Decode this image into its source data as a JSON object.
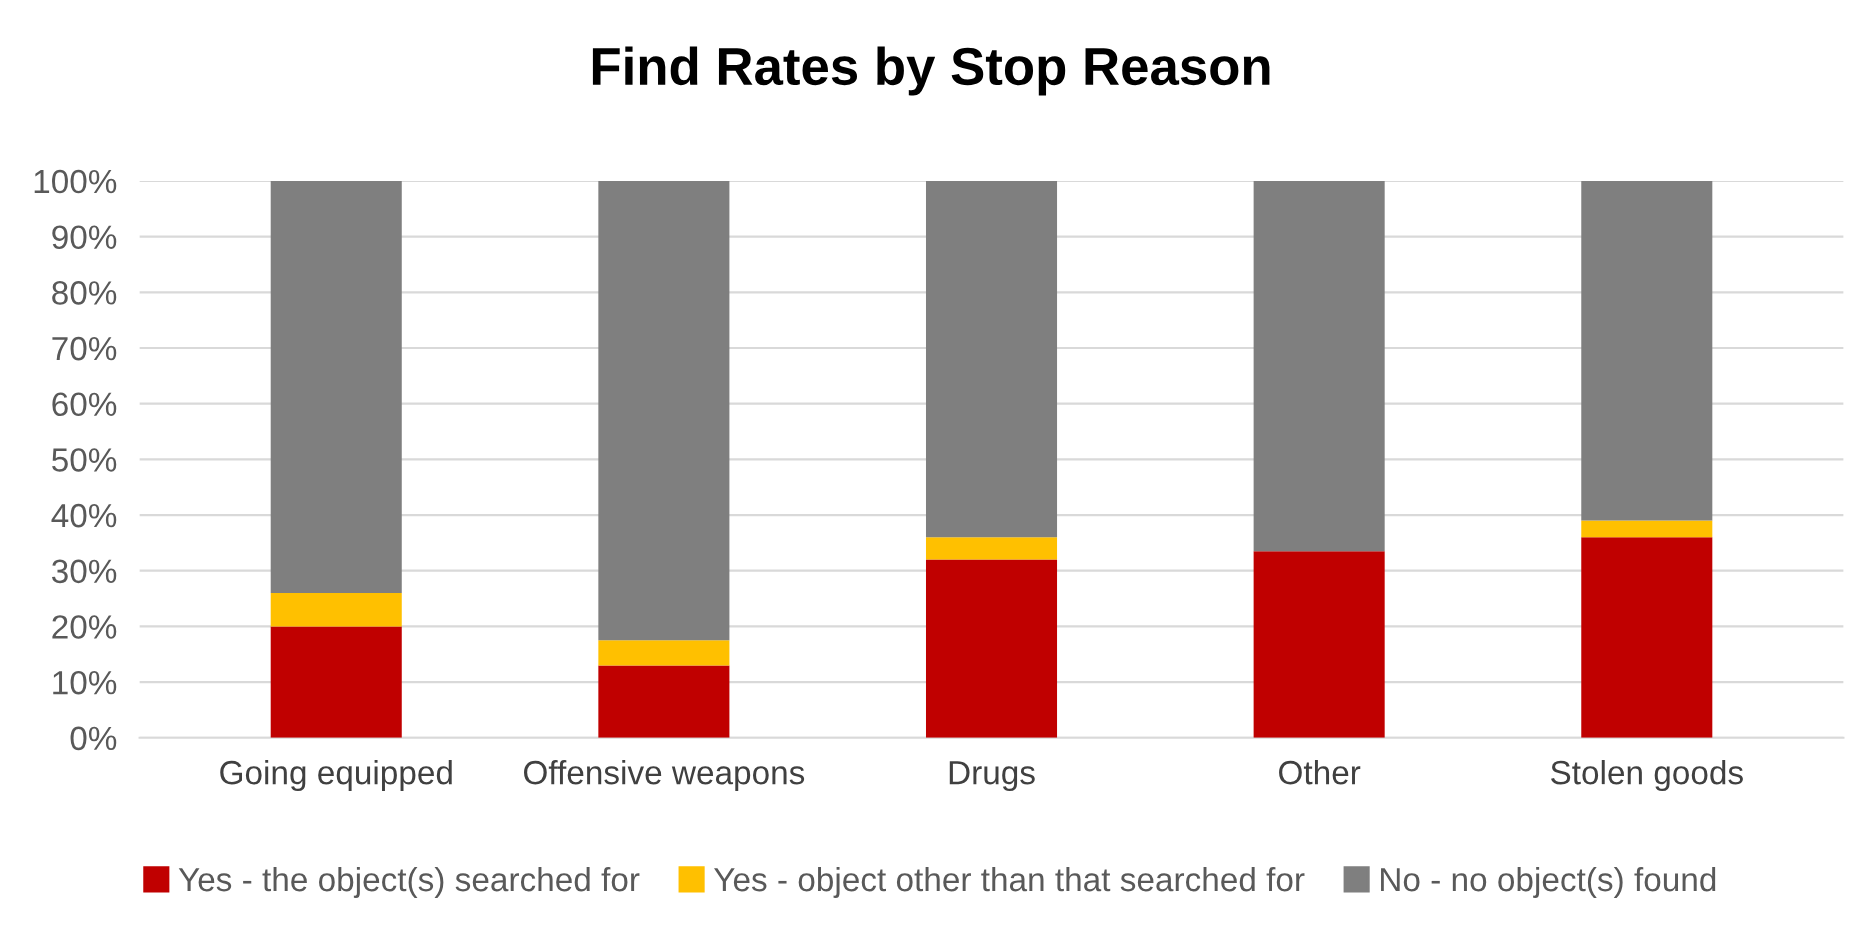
{
  "chart_data": {
    "type": "bar",
    "title": "Find Rates by Stop Reason",
    "stacked": true,
    "categories": [
      "Going equipped",
      "Offensive weapons",
      "Drugs",
      "Other",
      "Stolen goods"
    ],
    "series": [
      {
        "name": "Yes - the object(s) searched for",
        "color": "#c00000",
        "values": [
          20,
          13,
          32,
          33.5,
          36
        ]
      },
      {
        "name": "Yes - object other than that searched for",
        "color": "#ffc000",
        "values": [
          6,
          4.5,
          4,
          0,
          3
        ]
      },
      {
        "name": "No - no object(s) found",
        "color": "#7f7f7f",
        "values": [
          74,
          82.5,
          64,
          66.5,
          61
        ]
      }
    ],
    "ylim": [
      0,
      100
    ],
    "yticks": [
      {
        "value": 0,
        "label": "0%"
      },
      {
        "value": 10,
        "label": "10%"
      },
      {
        "value": 20,
        "label": "20%"
      },
      {
        "value": 30,
        "label": "30%"
      },
      {
        "value": 40,
        "label": "40%"
      },
      {
        "value": 50,
        "label": "50%"
      },
      {
        "value": 60,
        "label": "60%"
      },
      {
        "value": 70,
        "label": "70%"
      },
      {
        "value": 80,
        "label": "80%"
      },
      {
        "value": 90,
        "label": "90%"
      },
      {
        "value": 100,
        "label": "100%"
      }
    ],
    "grid": "y",
    "legend": "bottom"
  }
}
